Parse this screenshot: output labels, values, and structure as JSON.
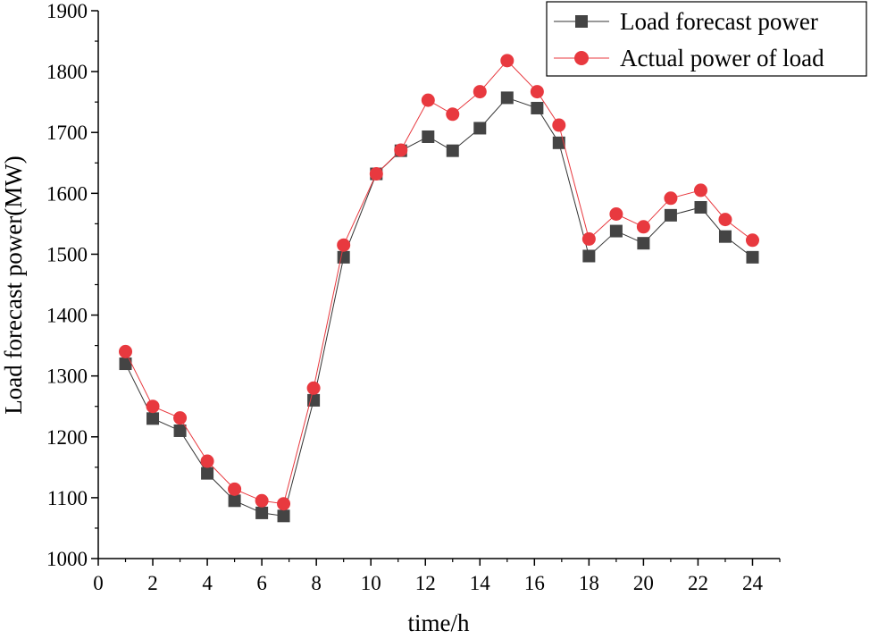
{
  "chart_data": {
    "type": "line",
    "title": "",
    "xlabel": "time/h",
    "ylabel": "Load forecast power(MW)",
    "xlim": [
      0,
      25
    ],
    "ylim": [
      1000,
      1900
    ],
    "xticks": [
      0,
      2,
      4,
      6,
      8,
      10,
      12,
      14,
      16,
      18,
      20,
      22,
      24
    ],
    "yticks": [
      1000,
      1100,
      1200,
      1300,
      1400,
      1500,
      1600,
      1700,
      1800,
      1900
    ],
    "grid": false,
    "legend_position": "top-right",
    "series": [
      {
        "name": "Load forecast power",
        "color": "#333333",
        "marker": "square",
        "x": [
          1,
          2,
          3,
          4,
          5,
          6,
          6.8,
          7.9,
          9,
          10.2,
          11.1,
          12.1,
          13,
          14,
          15,
          16.1,
          16.9,
          18,
          19,
          20,
          21,
          22.1,
          23,
          24
        ],
        "values": [
          1320,
          1230,
          1210,
          1140,
          1095,
          1075,
          1070,
          1260,
          1495,
          1632,
          1670,
          1693,
          1670,
          1707,
          1757,
          1740,
          1683,
          1497,
          1538,
          1518,
          1564,
          1577,
          1529,
          1495
        ]
      },
      {
        "name": "Actual power of load",
        "color": "#e8393f",
        "marker": "circle",
        "x": [
          1,
          2,
          3,
          4,
          5,
          6,
          6.8,
          7.9,
          9,
          10.2,
          11.1,
          12.1,
          13,
          14,
          15,
          16.1,
          16.9,
          18,
          19,
          20,
          21,
          22.1,
          23,
          24
        ],
        "values": [
          1340,
          1250,
          1231,
          1160,
          1114,
          1095,
          1090,
          1280,
          1515,
          1632,
          1671,
          1753,
          1730,
          1767,
          1818,
          1767,
          1712,
          1525,
          1566,
          1545,
          1592,
          1605,
          1557,
          1523
        ]
      }
    ]
  }
}
